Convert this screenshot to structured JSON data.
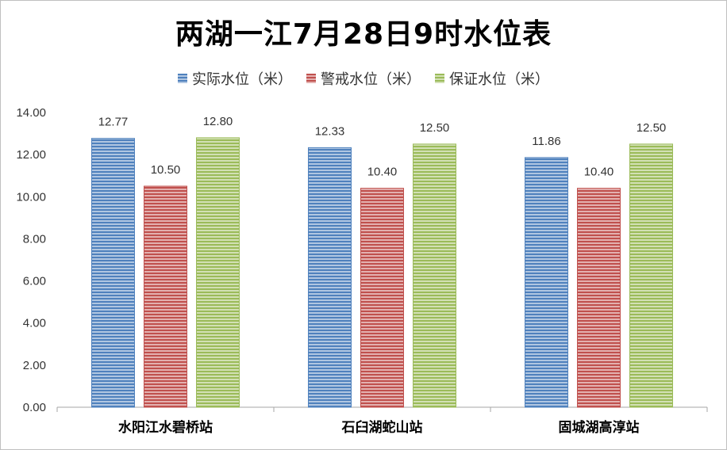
{
  "chart_data": {
    "type": "bar",
    "title": "两湖一江7月28日9时水位表",
    "categories": [
      "水阳江水碧桥站",
      "石臼湖蛇山站",
      "固城湖高淳站"
    ],
    "series": [
      {
        "name": "实际水位（米）",
        "values": [
          12.77,
          12.33,
          11.86
        ],
        "labels": [
          "12.77",
          "12.33",
          "11.86"
        ],
        "color": "#4f81bd"
      },
      {
        "name": "警戒水位（米）",
        "values": [
          10.5,
          10.4,
          10.4
        ],
        "labels": [
          "10.50",
          "10.40",
          "10.40"
        ],
        "color": "#c0504d"
      },
      {
        "name": "保证水位（米）",
        "values": [
          12.8,
          12.5,
          12.5
        ],
        "labels": [
          "12.80",
          "12.50",
          "12.50"
        ],
        "color": "#9bbb59"
      }
    ],
    "ylim": [
      0,
      14
    ],
    "yticks": [
      "0.00",
      "2.00",
      "4.00",
      "6.00",
      "8.00",
      "10.00",
      "12.00",
      "14.00"
    ],
    "grid": false,
    "legend": "top"
  }
}
